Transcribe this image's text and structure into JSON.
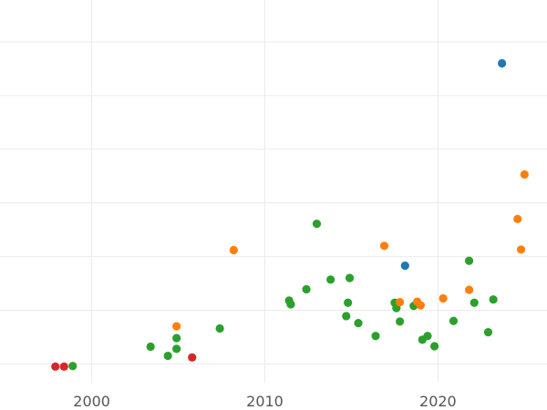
{
  "chart_data": {
    "type": "scatter",
    "grid": true,
    "xlim": [
      1994.7,
      2026.3
    ],
    "ylim": [
      -0.35,
      6.78
    ],
    "x_ticks": [
      2000,
      2010,
      2020
    ],
    "x_tick_labels": [
      "2000",
      "2010",
      "2020"
    ],
    "y_gridlines": [
      0,
      1,
      2,
      3,
      4,
      5,
      6
    ],
    "series": [
      {
        "color": "#d62728",
        "points": [
          {
            "x": 1997.9,
            "y": -0.05
          },
          {
            "x": 1998.4,
            "y": -0.05
          },
          {
            "x": 2005.8,
            "y": 0.12
          }
        ]
      },
      {
        "color": "#2ca02c",
        "points": [
          {
            "x": 1998.9,
            "y": -0.04
          },
          {
            "x": 2003.4,
            "y": 0.32
          },
          {
            "x": 2004.4,
            "y": 0.15
          },
          {
            "x": 2004.9,
            "y": 0.28
          },
          {
            "x": 2004.9,
            "y": 0.48
          },
          {
            "x": 2007.4,
            "y": 0.66
          },
          {
            "x": 2011.4,
            "y": 1.18
          },
          {
            "x": 2011.5,
            "y": 1.11
          },
          {
            "x": 2012.4,
            "y": 1.39
          },
          {
            "x": 2013.0,
            "y": 2.61
          },
          {
            "x": 2013.8,
            "y": 1.57
          },
          {
            "x": 2014.7,
            "y": 0.89
          },
          {
            "x": 2014.8,
            "y": 1.14
          },
          {
            "x": 2014.9,
            "y": 1.6
          },
          {
            "x": 2015.4,
            "y": 0.76
          },
          {
            "x": 2016.4,
            "y": 0.52
          },
          {
            "x": 2017.5,
            "y": 1.14
          },
          {
            "x": 2017.6,
            "y": 1.04
          },
          {
            "x": 2017.8,
            "y": 0.79
          },
          {
            "x": 2018.6,
            "y": 1.08
          },
          {
            "x": 2019.1,
            "y": 0.45
          },
          {
            "x": 2019.4,
            "y": 0.52
          },
          {
            "x": 2019.8,
            "y": 0.33
          },
          {
            "x": 2020.9,
            "y": 0.8
          },
          {
            "x": 2021.8,
            "y": 1.92
          },
          {
            "x": 2022.1,
            "y": 1.14
          },
          {
            "x": 2022.9,
            "y": 0.59
          },
          {
            "x": 2023.2,
            "y": 1.2
          }
        ]
      },
      {
        "color": "#ff7f0e",
        "points": [
          {
            "x": 2004.9,
            "y": 0.7
          },
          {
            "x": 2008.2,
            "y": 2.12
          },
          {
            "x": 2016.9,
            "y": 2.2
          },
          {
            "x": 2017.8,
            "y": 1.15
          },
          {
            "x": 2018.8,
            "y": 1.16
          },
          {
            "x": 2019.0,
            "y": 1.09
          },
          {
            "x": 2020.3,
            "y": 1.22
          },
          {
            "x": 2021.8,
            "y": 1.38
          },
          {
            "x": 2024.6,
            "y": 2.7
          },
          {
            "x": 2024.8,
            "y": 2.13
          },
          {
            "x": 2025.0,
            "y": 3.53
          }
        ]
      },
      {
        "color": "#1f77b4",
        "points": [
          {
            "x": 2018.1,
            "y": 1.83
          },
          {
            "x": 2023.7,
            "y": 5.6
          }
        ]
      }
    ]
  }
}
